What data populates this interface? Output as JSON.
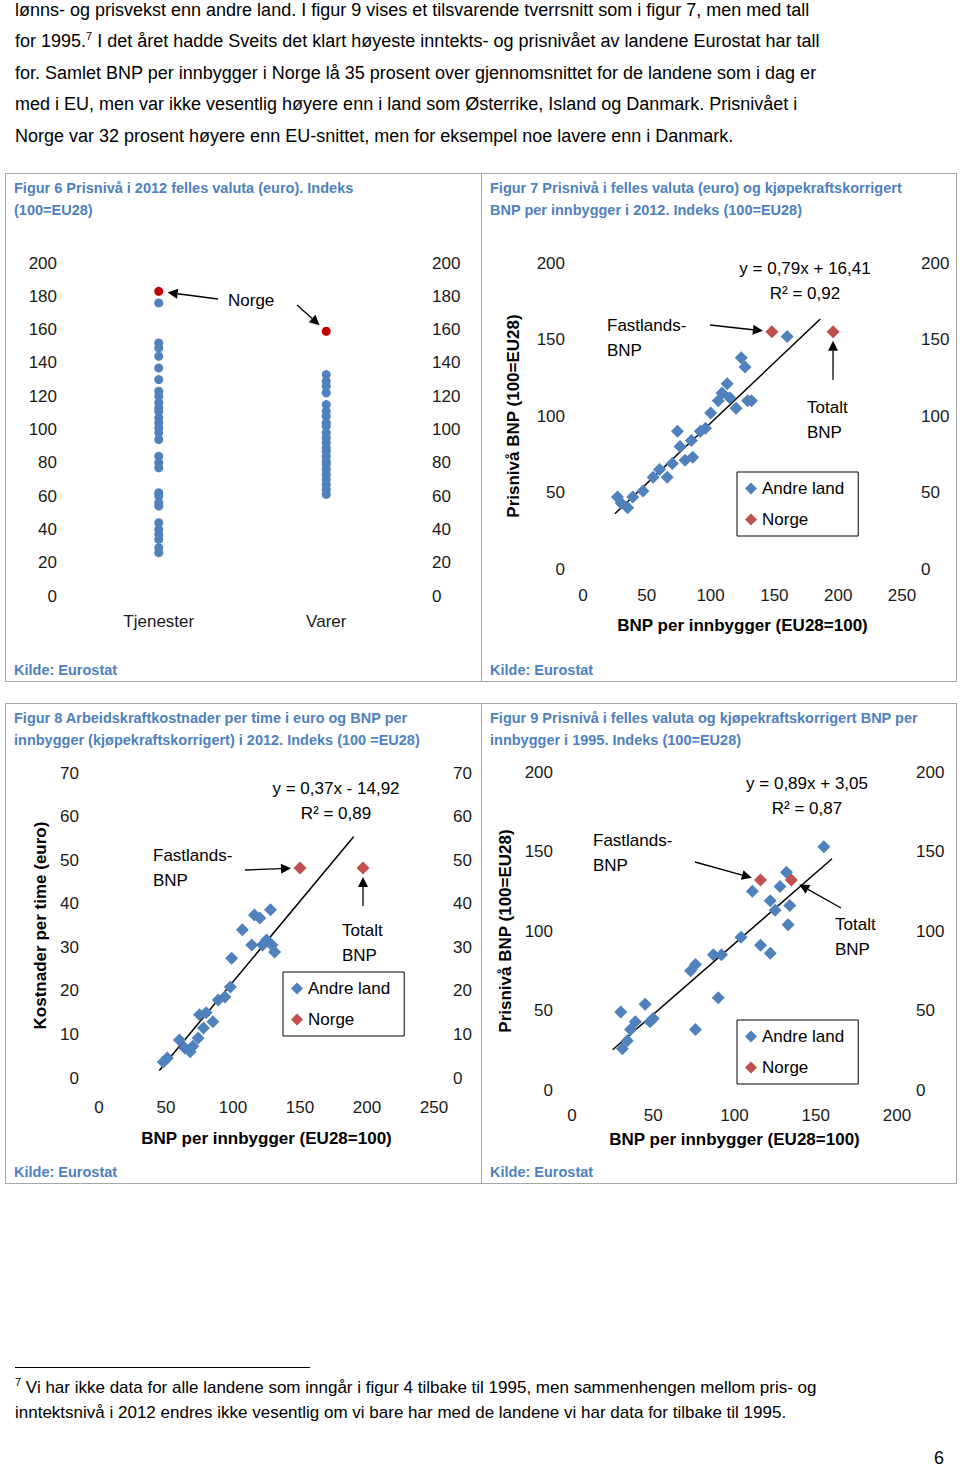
{
  "text": [
    "lønns- og prisvekst enn andre land. I figur 9 vises et tilsvarende tverrsnitt som i figur 7, men med tall",
    [
      "for 1995.",
      {
        "sup": "7"
      },
      " I det året hadde Sveits det klart høyeste inntekts- og prisnivået av landene Eurostat har tall"
    ],
    "for. Samlet BNP per innbygger i Norge lå 35 prosent over gjennomsnittet for de landene som i dag er",
    "med i EU, men var ikke vesentlig høyere enn i land som Østerrike, Island og Danmark. Prisnivået i",
    "Norge var 32 prosent høyere enn EU-snittet, men for eksempel noe lavere enn i Danmark."
  ],
  "chart_data": [
    {
      "type": "scatter",
      "title": "Figur 6 Prisnivå i 2012 felles valuta (euro). Indeks (100=EU28)",
      "source": "Kilde: Eurostat",
      "categories": [
        "Tjenester",
        "Varer"
      ],
      "ylim": [
        0,
        200
      ],
      "yticks": [
        0,
        20,
        40,
        60,
        80,
        100,
        120,
        140,
        160,
        180,
        200
      ],
      "y2lim": [
        0,
        200
      ],
      "y2ticks": [
        0,
        20,
        40,
        60,
        80,
        100,
        120,
        140,
        160,
        180,
        200
      ],
      "grid": false,
      "series": [
        {
          "color": "#4f81bd",
          "marker": "circle",
          "values": [
            [
              176,
              152,
              149,
              144,
              137,
              130,
              123,
              120,
              116,
              113,
              111,
              107,
              104,
              101,
              98,
              94,
              84,
              80,
              77,
              62,
              60,
              56,
              54,
              44,
              40,
              37,
              34,
              29,
              26
            ],
            [
              133,
              129,
              126,
              122,
              115,
              111,
              108,
              104,
              102,
              98,
              95,
              92,
              89,
              87,
              84,
              81,
              79,
              76,
              73,
              70,
              67,
              64,
              61
            ]
          ]
        },
        {
          "name": "Norge",
          "color": "#c00000",
          "marker": "circle",
          "values": [
            [
              183
            ],
            [
              159
            ]
          ]
        }
      ]
    },
    {
      "type": "scatter",
      "title": "Figur 7 Prisnivå i felles valuta (euro) og kjøpekraftskorrigert BNP per innbygger i 2012. Indeks (100=EU28)",
      "source": "Kilde: Eurostat",
      "x_label": "BNP per innbygger (EU28=100)",
      "y_label": "Prisnivå BNP (100=EU28)",
      "xlim": [
        0,
        250
      ],
      "xticks": [
        0,
        50,
        100,
        150,
        200,
        250
      ],
      "ylim": [
        0,
        200
      ],
      "yticks": [
        0,
        50,
        100,
        150,
        200
      ],
      "y2lim": [
        0,
        200
      ],
      "y2ticks": [
        0,
        50,
        100,
        150,
        200
      ],
      "grid": false,
      "legend": "lower right",
      "series": [
        {
          "name": "Andre land",
          "color": "#4f81bd",
          "marker": "diamond",
          "values": [
            [
              27,
              47
            ],
            [
              30,
              43
            ],
            [
              35,
              40
            ],
            [
              39,
              47
            ],
            [
              47,
              51
            ],
            [
              55,
              60
            ],
            [
              60,
              65
            ],
            [
              66,
              60
            ],
            [
              70,
              69
            ],
            [
              74,
              90
            ],
            [
              76,
              80
            ],
            [
              80,
              71
            ],
            [
              85,
              84
            ],
            [
              86,
              73
            ],
            [
              92,
              90
            ],
            [
              96,
              92
            ],
            [
              100,
              102
            ],
            [
              106,
              110
            ],
            [
              109,
              115
            ],
            [
              113,
              121
            ],
            [
              115,
              112
            ],
            [
              120,
              105
            ],
            [
              124,
              138
            ],
            [
              127,
              132
            ],
            [
              129,
              110
            ],
            [
              132,
              110
            ],
            [
              160,
              152
            ]
          ]
        },
        {
          "name": "Norge",
          "color": "#c0504d",
          "marker": "diamond",
          "values": [
            [
              148,
              155
            ],
            [
              196,
              155
            ]
          ],
          "annotations": [
            "Fastlands-\nBNP",
            "Totalt\nBNP"
          ]
        }
      ],
      "trendline": {
        "slope": 0.79,
        "intercept": 16.41,
        "x": [
          25,
          186
        ],
        "label": "y = 0,79x + 16,41",
        "r2_label": "R² = 0,92"
      }
    },
    {
      "type": "scatter",
      "title": "Figur 8 Arbeidskraftkostnader per time i euro og BNP per innbygger (kjøpekraftskorrigert) i 2012. Indeks (100 =EU28)",
      "source": "Kilde: Eurostat",
      "x_label": "BNP per innbygger (EU28=100)",
      "y_label": "Kostnader per time (euro)",
      "xlim": [
        0,
        250
      ],
      "xticks": [
        0,
        50,
        100,
        150,
        200,
        250
      ],
      "ylim": [
        0,
        70
      ],
      "yticks": [
        0,
        10,
        20,
        30,
        40,
        50,
        60,
        70
      ],
      "y2lim": [
        0,
        70
      ],
      "y2ticks": [
        0,
        10,
        20,
        30,
        40,
        50,
        60,
        70
      ],
      "grid": false,
      "legend": "lower right",
      "series": [
        {
          "name": "Andre land",
          "color": "#4f81bd",
          "marker": "diamond",
          "values": [
            [
              48,
              3.7
            ],
            [
              51,
              4.6
            ],
            [
              60,
              8.7
            ],
            [
              64,
              6.9
            ],
            [
              68,
              6
            ],
            [
              70,
              7.3
            ],
            [
              74,
              9.2
            ],
            [
              75,
              14.5
            ],
            [
              78,
              11.5
            ],
            [
              80,
              15
            ],
            [
              85,
              12.9
            ],
            [
              89,
              17.9
            ],
            [
              94,
              18.6
            ],
            [
              98,
              20.9
            ],
            [
              99,
              27.5
            ],
            [
              107,
              34
            ],
            [
              114,
              30.5
            ],
            [
              116,
              37.4
            ],
            [
              120,
              36.7
            ],
            [
              122,
              30.5
            ],
            [
              125,
              31.7
            ],
            [
              128,
              38.6
            ],
            [
              129,
              30.5
            ],
            [
              131,
              28.9
            ]
          ]
        },
        {
          "name": "Norge",
          "color": "#c0504d",
          "marker": "diamond",
          "values": [
            [
              150,
              48.2
            ],
            [
              197,
              48.2
            ]
          ],
          "annotations": [
            "Fastlands-\nBNP",
            "Totalt\nBNP"
          ]
        }
      ],
      "trendline": {
        "slope": 0.37,
        "intercept": -14.92,
        "x": [
          45,
          190
        ],
        "label": "y = 0,37x - 14,92",
        "r2_label": "R² = 0,89"
      }
    },
    {
      "type": "scatter",
      "title": "Figur 9 Prisnivå i felles valuta og kjøpekraftskorrigert BNP per innbygger i 1995. Indeks (100=EU28)",
      "source": "Kilde: Eurostat",
      "x_label": "BNP per innbygger (EU28=100)",
      "y_label": "Prisnivå BNP (100=EU28)",
      "xlim": [
        0,
        200
      ],
      "xticks": [
        0,
        50,
        100,
        150,
        200
      ],
      "ylim": [
        0,
        200
      ],
      "yticks": [
        0,
        50,
        100,
        150,
        200
      ],
      "y2lim": [
        0,
        200
      ],
      "y2ticks": [
        0,
        50,
        100,
        150,
        200
      ],
      "grid": false,
      "legend": "lower right",
      "series": [
        {
          "name": "Andre land",
          "color": "#4f81bd",
          "marker": "diamond",
          "values": [
            [
              30,
              49
            ],
            [
              31,
              26
            ],
            [
              34,
              31
            ],
            [
              36,
              38
            ],
            [
              39,
              43
            ],
            [
              45,
              54
            ],
            [
              48,
              43
            ],
            [
              50,
              45
            ],
            [
              76,
              38
            ],
            [
              73,
              75
            ],
            [
              76,
              79
            ],
            [
              90,
              58
            ],
            [
              87,
              85
            ],
            [
              92,
              85
            ],
            [
              104,
              96
            ],
            [
              116,
              91
            ],
            [
              122,
              86
            ],
            [
              111,
              125
            ],
            [
              122,
              119
            ],
            [
              125,
              113
            ],
            [
              128,
              128
            ],
            [
              132,
              137
            ],
            [
              134,
              116
            ],
            [
              133,
              104
            ],
            [
              155,
              153
            ]
          ]
        },
        {
          "name": "Norge",
          "color": "#c0504d",
          "marker": "diamond",
          "values": [
            [
              116,
              132
            ],
            [
              135,
              132
            ]
          ],
          "annotations": [
            "Fastlands-\nBNP",
            "Totalt\nBNP"
          ]
        }
      ],
      "trendline": {
        "slope": 0.89,
        "intercept": 3.05,
        "x": [
          25,
          160
        ],
        "label": "y = 0,89x + 3,05",
        "r2_label": "R² = 0,87"
      }
    }
  ],
  "footnote": {
    "marker": "7",
    "lines": [
      "Vi har ikke data for alle landene som inngår i figur 4 tilbake til 1995, men sammenhengen mellom pris- og",
      "inntektsnivå i 2012 endres ikke vesentlig om vi bare har med de landene vi har data for tilbake til 1995."
    ]
  },
  "page_number": 6
}
